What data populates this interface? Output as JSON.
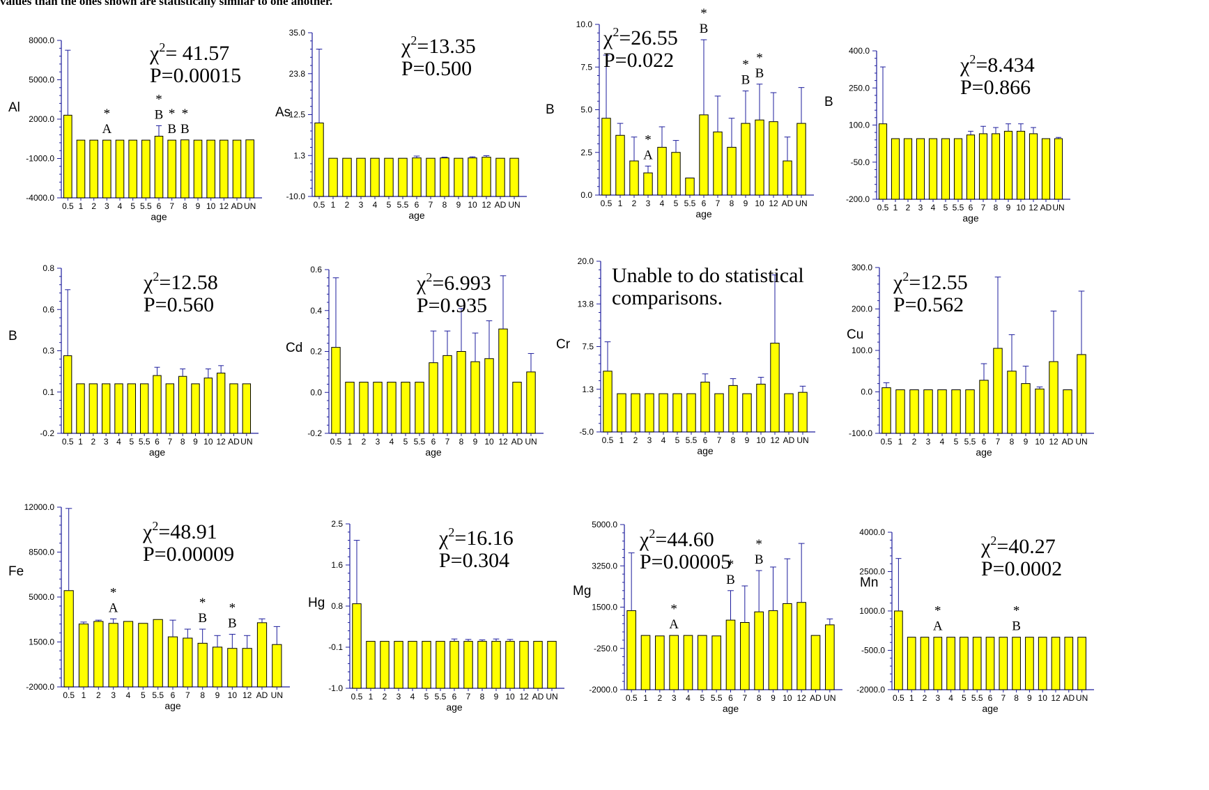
{
  "caption": "values than the ones shown are statistically similar to one another.",
  "style": {
    "bar_fill": "#ffff00",
    "bar_stroke": "#000000",
    "error_color": "#1c1c9c",
    "axis_color": "#1c1c9c"
  },
  "chart_data": [
    {
      "type": "bar",
      "ylabel": "Al",
      "xlabel": "age",
      "yticks": [
        "-4000.0",
        "-1000.0",
        "2000.0",
        "5000.0",
        "8000.0"
      ],
      "ylim": [
        -4000,
        8000
      ],
      "categories": [
        "0.5",
        "1",
        "2",
        "3",
        "4",
        "5",
        "5.5",
        "6",
        "7",
        "8",
        "9",
        "10",
        "12",
        "AD",
        "UN"
      ],
      "values": [
        2300,
        400,
        400,
        400,
        400,
        400,
        400,
        700,
        400,
        420,
        400,
        400,
        400,
        400,
        420
      ],
      "errors": [
        7250,
        0,
        0,
        0,
        0,
        0,
        0,
        1500,
        0,
        0,
        0,
        0,
        0,
        0,
        0
      ],
      "stat_lines": [
        "χ2= 41.57",
        "P=0.00015"
      ],
      "annotations": [
        {
          "category": "3",
          "star": "*",
          "letter": "A"
        },
        {
          "category": "6",
          "star": "*",
          "letter": "B"
        },
        {
          "category": "7",
          "star": "*",
          "letter": "B"
        },
        {
          "category": "8",
          "star": "*",
          "letter": "B"
        }
      ]
    },
    {
      "type": "bar",
      "ylabel": "As",
      "xlabel": "age",
      "yticks": [
        "-10.0",
        "1.3",
        "12.5",
        "23.8",
        "35.0"
      ],
      "ylim": [
        -10,
        35
      ],
      "categories": [
        "0.5",
        "1",
        "2",
        "3",
        "4",
        "5",
        "5.5",
        "6",
        "7",
        "8",
        "9",
        "10",
        "12",
        "AD",
        "UN"
      ],
      "values": [
        10.2,
        0.5,
        0.5,
        0.5,
        0.5,
        0.5,
        0.5,
        0.6,
        0.5,
        0.6,
        0.5,
        0.6,
        0.8,
        0.5,
        0.5
      ],
      "errors": [
        30.5,
        0,
        0,
        0,
        0,
        0,
        0,
        1.1,
        0,
        0.8,
        0,
        0.9,
        1.2,
        0,
        0
      ],
      "stat_lines": [
        "χ2=13.35",
        "P=0.500"
      ],
      "annotations": []
    },
    {
      "type": "bar",
      "ylabel": "B",
      "xlabel": "age",
      "yticks": [
        "0.0",
        "2.5",
        "5.0",
        "7.5",
        "10.0"
      ],
      "ylim": [
        0,
        10
      ],
      "categories": [
        "0.5",
        "1",
        "2",
        "3",
        "4",
        "5",
        "5.5",
        "6",
        "7",
        "8",
        "9",
        "10",
        "12",
        "AD",
        "UN"
      ],
      "values": [
        4.5,
        3.5,
        2.0,
        1.3,
        2.8,
        2.5,
        1.0,
        4.7,
        3.7,
        2.8,
        4.2,
        4.4,
        4.3,
        2.0,
        4.2
      ],
      "errors": [
        8.2,
        4.2,
        3.4,
        1.7,
        4.0,
        3.2,
        1.0,
        9.1,
        5.8,
        4.5,
        6.1,
        6.5,
        6.0,
        3.4,
        6.3
      ],
      "stat_lines": [
        "χ2=26.55",
        "P=0.022"
      ],
      "annotations": [
        {
          "category": "3",
          "star": "*",
          "letter": "A"
        },
        {
          "category": "6",
          "star": "*",
          "letter": "B"
        },
        {
          "category": "9",
          "star": "*",
          "letter": "B"
        },
        {
          "category": "10",
          "star": "*",
          "letter": "B"
        }
      ]
    },
    {
      "type": "bar",
      "ylabel": "B",
      "xlabel": "age",
      "yticks": [
        "-200.0",
        "-50.0",
        "100.0",
        "250.0",
        "400.0"
      ],
      "ylim": [
        -200,
        400
      ],
      "categories": [
        "0.5",
        "1",
        "2",
        "3",
        "4",
        "5",
        "5.5",
        "6",
        "7",
        "8",
        "9",
        "10",
        "12",
        "AD",
        "UN"
      ],
      "values": [
        105,
        45,
        45,
        45,
        45,
        45,
        45,
        60,
        65,
        65,
        75,
        75,
        65,
        45,
        45
      ],
      "errors": [
        335,
        0,
        0,
        0,
        0,
        0,
        0,
        75,
        95,
        90,
        105,
        105,
        90,
        0,
        50
      ],
      "stat_lines": [
        "χ2=8.434",
        "P=0.866"
      ],
      "annotations": []
    },
    {
      "type": "bar",
      "ylabel": "B",
      "xlabel": "age",
      "yticks": [
        "-0.2",
        "0.1",
        "0.3",
        "0.6",
        "0.8"
      ],
      "ylim": [
        -0.2,
        0.8
      ],
      "categories": [
        "0.5",
        "1",
        "2",
        "3",
        "4",
        "5",
        "5.5",
        "6",
        "7",
        "8",
        "9",
        "10",
        "12",
        "AD",
        "UN"
      ],
      "values": [
        0.27,
        0.1,
        0.1,
        0.1,
        0.1,
        0.1,
        0.1,
        0.15,
        0.1,
        0.145,
        0.1,
        0.135,
        0.165,
        0.1,
        0.1
      ],
      "errors": [
        0.67,
        0,
        0,
        0,
        0,
        0,
        0,
        0.2,
        0,
        0.19,
        0,
        0.19,
        0.21,
        0,
        0
      ],
      "stat_lines": [
        "χ2=12.58",
        "P=0.560"
      ],
      "annotations": []
    },
    {
      "type": "bar",
      "ylabel": "Cd",
      "xlabel": "age",
      "yticks": [
        "-0.2",
        "0.0",
        "0.2",
        "0.4",
        "0.6"
      ],
      "ylim": [
        -0.2,
        0.6
      ],
      "categories": [
        "0.5",
        "1",
        "2",
        "3",
        "4",
        "5",
        "5.5",
        "6",
        "7",
        "8",
        "9",
        "10",
        "12",
        "AD",
        "UN"
      ],
      "values": [
        0.22,
        0.05,
        0.05,
        0.05,
        0.05,
        0.05,
        0.05,
        0.145,
        0.18,
        0.2,
        0.15,
        0.165,
        0.31,
        0.05,
        0.1
      ],
      "errors": [
        0.56,
        0,
        0,
        0,
        0,
        0,
        0,
        0.3,
        0.3,
        0.41,
        0.29,
        0.35,
        0.57,
        0,
        0.19
      ],
      "stat_lines": [
        "χ2=6.993",
        "P=0.935"
      ],
      "annotations": []
    },
    {
      "type": "bar",
      "ylabel": "Cr",
      "xlabel": "age",
      "yticks": [
        "-5.0",
        "1.3",
        "7.5",
        "13.8",
        "20.0"
      ],
      "ylim": [
        -5,
        20
      ],
      "categories": [
        "0.5",
        "1",
        "2",
        "3",
        "4",
        "5",
        "5.5",
        "6",
        "7",
        "8",
        "9",
        "10",
        "12",
        "AD",
        "UN"
      ],
      "values": [
        3.9,
        0.6,
        0.6,
        0.6,
        0.6,
        0.6,
        0.6,
        2.3,
        0.6,
        1.8,
        0.6,
        2.0,
        8.0,
        0.6,
        0.8
      ],
      "errors": [
        8.2,
        0,
        0,
        0,
        0,
        0,
        0,
        3.5,
        0,
        2.8,
        0,
        3.0,
        18.0,
        0,
        1.7
      ],
      "stat_lines": [
        "Unable to do statistical",
        "comparisons."
      ],
      "annotations": []
    },
    {
      "type": "bar",
      "ylabel": "Cu",
      "xlabel": "age",
      "yticks": [
        "-100.0",
        "0.0",
        "100.0",
        "200.0",
        "300.0"
      ],
      "ylim": [
        -100,
        300
      ],
      "categories": [
        "0.5",
        "1",
        "2",
        "3",
        "4",
        "5",
        "5.5",
        "6",
        "7",
        "8",
        "9",
        "10",
        "12",
        "AD",
        "UN"
      ],
      "values": [
        10,
        5,
        5,
        5,
        5,
        5,
        5,
        28,
        105,
        50,
        20,
        7,
        73,
        5,
        90
      ],
      "errors": [
        22,
        0,
        0,
        0,
        0,
        0,
        0,
        68,
        277,
        138,
        62,
        12,
        195,
        0,
        243
      ],
      "stat_lines": [
        "χ2=12.55",
        "P=0.562"
      ],
      "annotations": []
    },
    {
      "type": "bar",
      "ylabel": "Fe",
      "xlabel": "age",
      "yticks": [
        "-2000.0",
        "1500.0",
        "5000.0",
        "8500.0",
        "12000.0"
      ],
      "ylim": [
        -2000,
        12000
      ],
      "categories": [
        "0.5",
        "1",
        "2",
        "3",
        "4",
        "5",
        "5.5",
        "6",
        "7",
        "8",
        "9",
        "10",
        "12",
        "AD",
        "UN"
      ],
      "values": [
        5500,
        2900,
        3100,
        2950,
        3100,
        2950,
        3250,
        1900,
        1800,
        1400,
        1100,
        1000,
        1000,
        3000,
        1300
      ],
      "errors": [
        11900,
        3050,
        3200,
        3300,
        3100,
        2950,
        3250,
        3200,
        2500,
        2500,
        2000,
        2100,
        2000,
        3300,
        2700
      ],
      "stat_lines": [
        "χ2=48.91",
        "P=0.00009"
      ],
      "annotations": [
        {
          "category": "3",
          "star": "*",
          "letter": "A"
        },
        {
          "category": "8",
          "star": "*",
          "letter": "B"
        },
        {
          "category": "10",
          "star": "*",
          "letter": "B"
        }
      ]
    },
    {
      "type": "bar",
      "ylabel": "Hg",
      "xlabel": "age",
      "yticks": [
        "-1.0",
        "-0.1",
        "0.8",
        "1.6",
        "2.5"
      ],
      "ylim": [
        -1,
        2.5
      ],
      "categories": [
        "0.5",
        "1",
        "2",
        "3",
        "4",
        "5",
        "5.5",
        "6",
        "7",
        "8",
        "9",
        "10",
        "12",
        "AD",
        "UN"
      ],
      "values": [
        0.8,
        0.0,
        0.0,
        0.0,
        0.0,
        0.0,
        0.0,
        0.0,
        0.0,
        0.0,
        0.0,
        0.0,
        0.0,
        0.0,
        0.0
      ],
      "errors": [
        2.15,
        0,
        0,
        0,
        0,
        0,
        0,
        0.05,
        0.04,
        0.03,
        0.05,
        0.04,
        0,
        0,
        0
      ],
      "stat_lines": [
        "χ2=16.16",
        "P=0.304"
      ],
      "annotations": []
    },
    {
      "type": "bar",
      "ylabel": "Mg",
      "xlabel": "age",
      "yticks": [
        "-2000.0",
        "-250.0",
        "1500.0",
        "3250.0",
        "5000.0"
      ],
      "ylim": [
        -2000,
        5000
      ],
      "categories": [
        "0.5",
        "1",
        "2",
        "3",
        "4",
        "5",
        "5.5",
        "6",
        "7",
        "8",
        "9",
        "10",
        "12",
        "AD",
        "UN"
      ],
      "values": [
        1350,
        300,
        280,
        300,
        300,
        300,
        280,
        950,
        850,
        1300,
        1350,
        1650,
        1700,
        300,
        750
      ],
      "errors": [
        3800,
        0,
        0,
        0,
        0,
        0,
        0,
        2200,
        2400,
        3050,
        3200,
        3550,
        4200,
        0,
        1000
      ],
      "stat_lines": [
        "χ2=44.60",
        "P=0.00005"
      ],
      "annotations": [
        {
          "category": "3",
          "star": "*",
          "letter": "A"
        },
        {
          "category": "6",
          "star": "*",
          "letter": "B"
        },
        {
          "category": "8",
          "star": "*",
          "letter": "B"
        }
      ]
    },
    {
      "type": "bar",
      "ylabel": "Mn",
      "xlabel": "age",
      "yticks": [
        "-2000.0",
        "-500.0",
        "1000.0",
        "2500.0",
        "4000.0"
      ],
      "ylim": [
        -2000,
        4000
      ],
      "categories": [
        "0.5",
        "1",
        "2",
        "3",
        "4",
        "5",
        "5.5",
        "6",
        "7",
        "8",
        "9",
        "10",
        "12",
        "AD",
        "UN"
      ],
      "values": [
        1000,
        0,
        0,
        0,
        0,
        0,
        0,
        0,
        0,
        0,
        0,
        0,
        0,
        0,
        0
      ],
      "errors": [
        3000,
        0,
        0,
        0,
        0,
        0,
        0,
        0,
        0,
        0,
        0,
        0,
        0,
        0,
        0
      ],
      "stat_lines": [
        "χ2=40.27",
        "P=0.0002"
      ],
      "annotations": [
        {
          "category": "3",
          "star": "*",
          "letter": "A"
        },
        {
          "category": "8",
          "star": "*",
          "letter": "B"
        }
      ]
    }
  ]
}
